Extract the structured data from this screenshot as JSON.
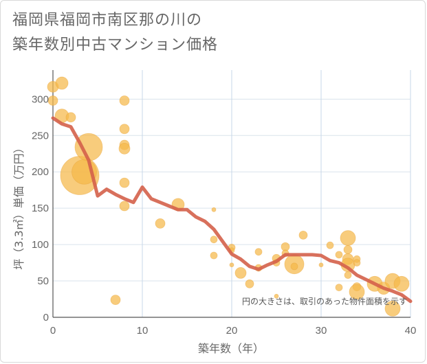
{
  "title_lines": [
    "福岡県福岡市南区那の川の",
    "築年数別中古マンション価格"
  ],
  "chart_data": {
    "type": "scatter",
    "title": "福岡県福岡市南区那の川の築年数別中古マンション価格",
    "xlabel": "築年数（年）",
    "ylabel": "坪（3.3㎡）単価（万円）",
    "xlim": [
      0,
      40
    ],
    "ylim": [
      0,
      340
    ],
    "xticks": [
      "0",
      "10",
      "20",
      "30",
      "40"
    ],
    "yticks": [
      "0",
      "50",
      "100",
      "150",
      "200",
      "250",
      "300"
    ],
    "grid": true,
    "annotation": "円の大きさは、取引のあった物件面積を示す",
    "bubble_color": "#f5b84a",
    "line_color": "#d4614a",
    "bubbles": [
      {
        "x": 0,
        "y": 317,
        "r": 8
      },
      {
        "x": 0,
        "y": 298,
        "r": 7
      },
      {
        "x": 1,
        "y": 322,
        "r": 9
      },
      {
        "x": 1,
        "y": 277,
        "r": 10
      },
      {
        "x": 2,
        "y": 275,
        "r": 7
      },
      {
        "x": 3,
        "y": 195,
        "r": 28
      },
      {
        "x": 3.5,
        "y": 200,
        "r": 18
      },
      {
        "x": 4,
        "y": 234,
        "r": 20
      },
      {
        "x": 8,
        "y": 298,
        "r": 7
      },
      {
        "x": 8,
        "y": 259,
        "r": 7
      },
      {
        "x": 8,
        "y": 237,
        "r": 7
      },
      {
        "x": 8,
        "y": 232,
        "r": 8
      },
      {
        "x": 8,
        "y": 185,
        "r": 7
      },
      {
        "x": 8,
        "y": 153,
        "r": 7
      },
      {
        "x": 7,
        "y": 24,
        "r": 7
      },
      {
        "x": 12,
        "y": 129,
        "r": 7
      },
      {
        "x": 14,
        "y": 155,
        "r": 9
      },
      {
        "x": 18,
        "y": 148,
        "r": 3
      },
      {
        "x": 18,
        "y": 107,
        "r": 5
      },
      {
        "x": 18,
        "y": 85,
        "r": 5
      },
      {
        "x": 20,
        "y": 96,
        "r": 5
      },
      {
        "x": 20,
        "y": 92,
        "r": 4
      },
      {
        "x": 20,
        "y": 72,
        "r": 3
      },
      {
        "x": 21,
        "y": 61,
        "r": 8
      },
      {
        "x": 22,
        "y": 46,
        "r": 6
      },
      {
        "x": 23,
        "y": 90,
        "r": 5
      },
      {
        "x": 23,
        "y": 68,
        "r": 5
      },
      {
        "x": 25,
        "y": 81,
        "r": 6
      },
      {
        "x": 25,
        "y": 75,
        "r": 5
      },
      {
        "x": 25,
        "y": 29,
        "r": 3
      },
      {
        "x": 26,
        "y": 97,
        "r": 6
      },
      {
        "x": 26,
        "y": 88,
        "r": 5
      },
      {
        "x": 27,
        "y": 73,
        "r": 14
      },
      {
        "x": 27,
        "y": 70,
        "r": 5
      },
      {
        "x": 28,
        "y": 113,
        "r": 6
      },
      {
        "x": 30,
        "y": 72,
        "r": 3
      },
      {
        "x": 31,
        "y": 99,
        "r": 5
      },
      {
        "x": 32,
        "y": 86,
        "r": 5
      },
      {
        "x": 32,
        "y": 41,
        "r": 5
      },
      {
        "x": 33,
        "y": 109,
        "r": 11
      },
      {
        "x": 33,
        "y": 93,
        "r": 6
      },
      {
        "x": 33,
        "y": 80,
        "r": 8
      },
      {
        "x": 33,
        "y": 72,
        "r": 10
      },
      {
        "x": 33,
        "y": 58,
        "r": 5
      },
      {
        "x": 34,
        "y": 80,
        "r": 5
      },
      {
        "x": 34,
        "y": 75,
        "r": 5
      },
      {
        "x": 34,
        "y": 42,
        "r": 6
      },
      {
        "x": 34,
        "y": 35,
        "r": 11
      },
      {
        "x": 36,
        "y": 46,
        "r": 11
      },
      {
        "x": 37,
        "y": 40,
        "r": 9
      },
      {
        "x": 38,
        "y": 50,
        "r": 11
      },
      {
        "x": 38,
        "y": 12,
        "r": 11
      },
      {
        "x": 39,
        "y": 46,
        "r": 11
      }
    ],
    "line": {
      "name": "",
      "x": [
        0,
        1,
        2,
        3,
        4,
        5,
        6,
        7,
        8,
        9,
        10,
        11,
        12,
        13,
        14,
        15,
        16,
        17,
        18,
        19,
        20,
        21,
        22,
        23,
        24,
        25,
        26,
        27,
        28,
        29,
        30,
        31,
        32,
        33,
        34,
        35,
        36,
        37,
        38,
        39,
        40
      ],
      "y": [
        274,
        266,
        262,
        240,
        216,
        167,
        176,
        169,
        163,
        158,
        179,
        163,
        158,
        153,
        148,
        148,
        138,
        132,
        121,
        104,
        87,
        80,
        70,
        66,
        72,
        77,
        86,
        86,
        86,
        86,
        85,
        78,
        75,
        68,
        58,
        52,
        46,
        40,
        36,
        31,
        22
      ]
    }
  }
}
